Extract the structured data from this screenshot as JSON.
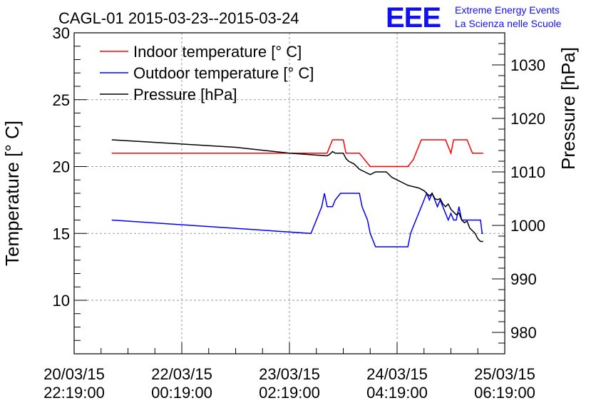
{
  "chart_data": {
    "type": "line",
    "title": "CAGL-01 2015-03-23--2015-03-24",
    "logo": {
      "mark": "EEE",
      "line1": "Extreme Energy Events",
      "line2": "La Scienza nelle Scuole"
    },
    "ylabel": "Temperature [° C]",
    "y2label": "Pressure [hPa]",
    "ylim": [
      6,
      30
    ],
    "y2lim": [
      976,
      1036
    ],
    "yticks": [
      10,
      15,
      20,
      25,
      30
    ],
    "y2ticks": [
      980,
      990,
      1000,
      1010,
      1020,
      1030
    ],
    "xlim": [
      0,
      8
    ],
    "xticks": [
      {
        "pos": 0,
        "date": "20/03/15",
        "time": "22:19:00"
      },
      {
        "pos": 2,
        "date": "22/03/15",
        "time": "00:19:00"
      },
      {
        "pos": 4,
        "date": "23/03/15",
        "time": "02:19:00"
      },
      {
        "pos": 6,
        "date": "24/03/15",
        "time": "04:19:00"
      },
      {
        "pos": 8,
        "date": "25/03/15",
        "time": "06:19:00"
      }
    ],
    "grid": true,
    "legend_position": "top-left",
    "series": [
      {
        "name": "Indoor temperature [° C]",
        "color": "#ff0000",
        "axis": "left",
        "x": [
          0.7,
          4.7,
          4.75,
          4.8,
          4.85,
          5.0,
          5.05,
          5.2,
          5.3,
          5.4,
          5.5,
          5.6,
          6.2,
          6.3,
          6.35,
          6.4,
          6.45,
          6.5,
          6.9,
          6.95,
          7.0,
          7.05,
          7.1,
          7.3,
          7.35,
          7.4,
          7.6
        ],
        "y": [
          21,
          21,
          21.5,
          22,
          22,
          22,
          21,
          21,
          21,
          20.5,
          20,
          20,
          20,
          20.5,
          21,
          21.5,
          22,
          22,
          22,
          21.5,
          21,
          22,
          22,
          22,
          21.5,
          21,
          21
        ]
      },
      {
        "name": "Outdoor temperature [° C]",
        "color": "#0000ff",
        "axis": "left",
        "x": [
          0.7,
          4.4,
          4.45,
          4.5,
          4.55,
          4.6,
          4.65,
          4.7,
          4.8,
          4.85,
          4.95,
          5.0,
          5.05,
          5.3,
          5.35,
          5.4,
          5.45,
          5.5,
          5.6,
          6.2,
          6.25,
          6.3,
          6.35,
          6.4,
          6.45,
          6.5,
          6.55,
          6.6,
          6.65,
          6.7,
          6.75,
          6.8,
          6.85,
          6.9,
          6.95,
          7.0,
          7.05,
          7.1,
          7.15,
          7.2,
          7.25,
          7.3,
          7.35,
          7.55,
          7.58,
          7.6
        ],
        "y": [
          16,
          15,
          15.5,
          16,
          16.5,
          17,
          18,
          17,
          17,
          17.5,
          18,
          18,
          18,
          18,
          17,
          16.5,
          16,
          15,
          14,
          14,
          15,
          15.5,
          16,
          16.5,
          17,
          17.5,
          18,
          17.5,
          18,
          17.5,
          17,
          17.5,
          17,
          16.5,
          16,
          16.5,
          16,
          16,
          17,
          16,
          16,
          16,
          16,
          16,
          15,
          15
        ]
      },
      {
        "name": "Pressure [hPa]",
        "color": "#000000",
        "axis": "right",
        "x": [
          0.7,
          3.0,
          4.0,
          4.7,
          4.75,
          4.8,
          4.85,
          5.0,
          5.05,
          5.1,
          5.2,
          5.3,
          5.4,
          5.5,
          5.6,
          5.65,
          5.8,
          5.9,
          6.0,
          6.1,
          6.2,
          6.4,
          6.5,
          6.55,
          6.6,
          6.65,
          6.7,
          6.75,
          6.8,
          6.85,
          6.9,
          6.95,
          7.0,
          7.05,
          7.1,
          7.15,
          7.2,
          7.25,
          7.3,
          7.35,
          7.4,
          7.45,
          7.5,
          7.55,
          7.6
        ],
        "y": [
          1016,
          1014.6,
          1013.5,
          1013,
          1013.3,
          1013.8,
          1013.5,
          1013.5,
          1012.5,
          1012,
          1011.5,
          1010.5,
          1010,
          1009.5,
          1010,
          1010,
          1010,
          1009,
          1008.5,
          1008,
          1007.5,
          1007,
          1006.5,
          1006,
          1005.5,
          1006,
          1005,
          1004.8,
          1005,
          1004,
          1003.5,
          1004,
          1003,
          1002.5,
          1002,
          1002.3,
          1001,
          1000.5,
          1000.8,
          999.5,
          999,
          998.5,
          997.5,
          997,
          997
        ]
      }
    ]
  }
}
